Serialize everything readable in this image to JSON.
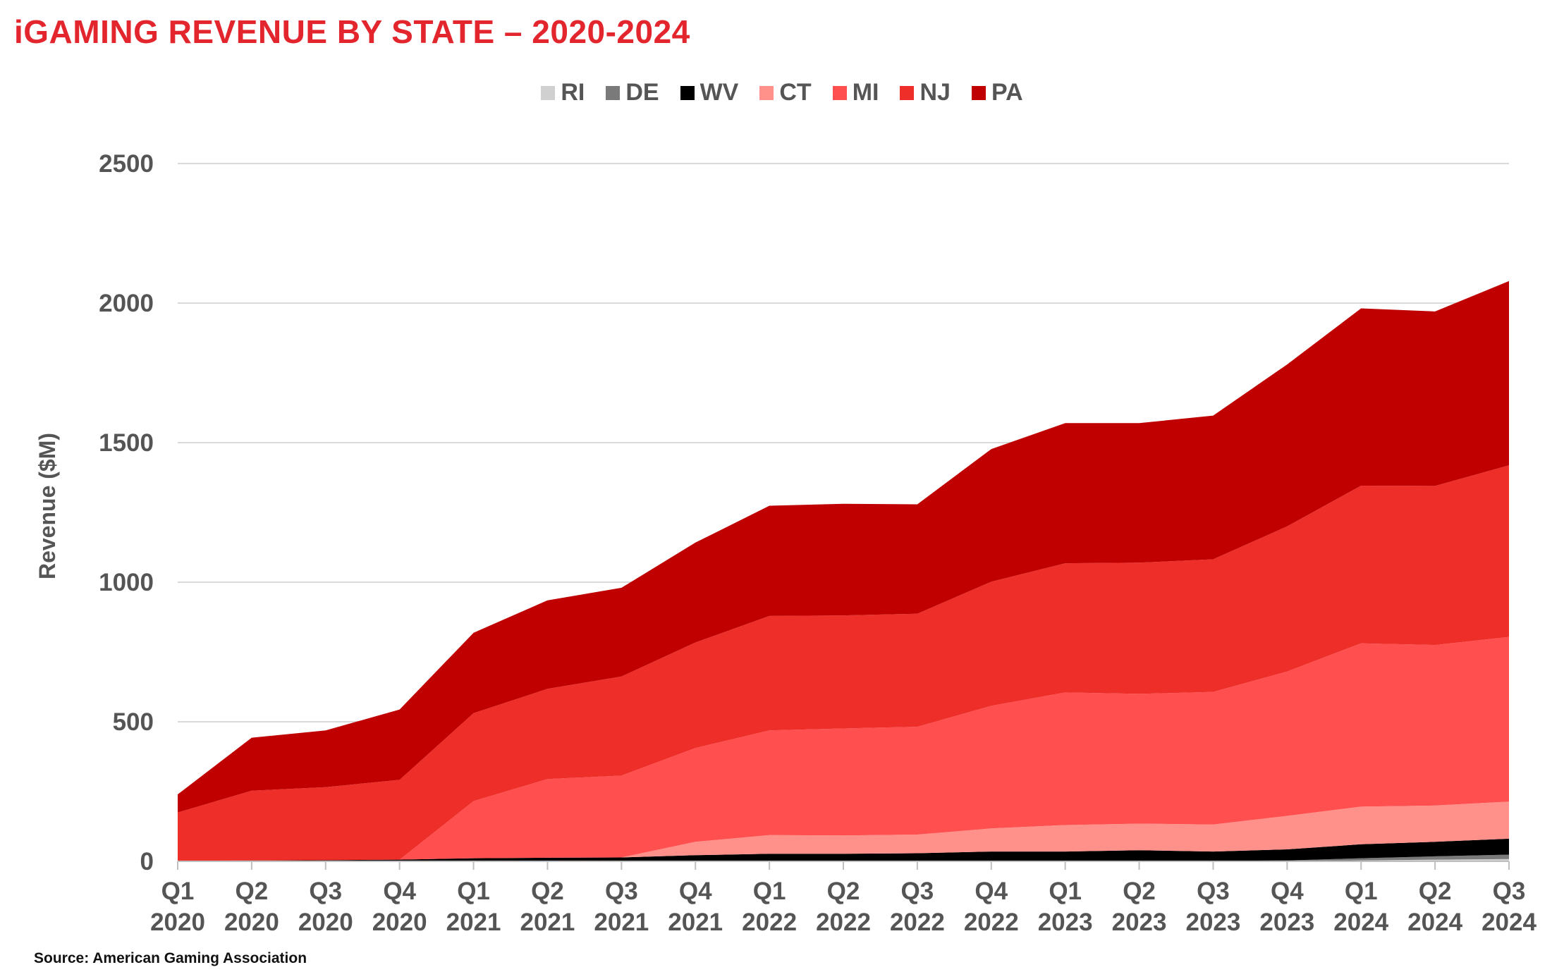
{
  "chart_data": {
    "type": "area",
    "stacked": true,
    "title": "iGAMING REVENUE BY STATE – 2020-2024",
    "ylabel": "Revenue ($M)",
    "xlabel": "",
    "ylim": [
      0,
      2500
    ],
    "yticks": [
      0,
      500,
      1000,
      1500,
      2000,
      2500
    ],
    "grid": "horizontal",
    "legend_position": "top-center",
    "categories": [
      {
        "q": "Q1",
        "y": "2020"
      },
      {
        "q": "Q2",
        "y": "2020"
      },
      {
        "q": "Q3",
        "y": "2020"
      },
      {
        "q": "Q4",
        "y": "2020"
      },
      {
        "q": "Q1",
        "y": "2021"
      },
      {
        "q": "Q2",
        "y": "2021"
      },
      {
        "q": "Q3",
        "y": "2021"
      },
      {
        "q": "Q4",
        "y": "2021"
      },
      {
        "q": "Q1",
        "y": "2022"
      },
      {
        "q": "Q2",
        "y": "2022"
      },
      {
        "q": "Q3",
        "y": "2022"
      },
      {
        "q": "Q4",
        "y": "2022"
      },
      {
        "q": "Q1",
        "y": "2023"
      },
      {
        "q": "Q2",
        "y": "2023"
      },
      {
        "q": "Q3",
        "y": "2023"
      },
      {
        "q": "Q4",
        "y": "2023"
      },
      {
        "q": "Q1",
        "y": "2024"
      },
      {
        "q": "Q2",
        "y": "2024"
      },
      {
        "q": "Q3",
        "y": "2024"
      }
    ],
    "series": [
      {
        "name": "RI",
        "color": "#d0d0d0",
        "values": [
          0,
          0,
          0,
          0,
          0,
          0,
          0,
          0,
          0,
          0,
          0,
          0,
          0,
          0,
          0,
          0,
          3,
          6,
          8
        ]
      },
      {
        "name": "DE",
        "color": "#7a7a7a",
        "values": [
          1,
          1,
          1,
          1,
          2,
          2,
          2,
          2,
          2,
          2,
          2,
          2,
          2,
          2,
          2,
          3,
          8,
          12,
          16
        ]
      },
      {
        "name": "WV",
        "color": "#000000",
        "values": [
          1,
          2,
          3,
          5,
          9,
          11,
          12,
          20,
          25,
          25,
          27,
          33,
          33,
          38,
          33,
          40,
          50,
          52,
          57
        ]
      },
      {
        "name": "CT",
        "color": "#ff918a",
        "values": [
          0,
          0,
          0,
          0,
          0,
          0,
          0,
          48,
          67,
          66,
          67,
          83,
          95,
          95,
          97,
          120,
          135,
          130,
          133
        ]
      },
      {
        "name": "MI",
        "color": "#ff4f4f",
        "values": [
          0,
          0,
          0,
          0,
          205,
          282,
          293,
          336,
          375,
          383,
          386,
          439,
          475,
          465,
          475,
          517,
          585,
          575,
          590
        ]
      },
      {
        "name": "NJ",
        "color": "#ee2e28",
        "values": [
          173,
          250,
          262,
          286,
          315,
          323,
          355,
          378,
          410,
          405,
          405,
          445,
          463,
          470,
          475,
          520,
          565,
          570,
          615
        ]
      },
      {
        "name": "PA",
        "color": "#c00000",
        "values": [
          65,
          190,
          203,
          252,
          288,
          317,
          318,
          358,
          395,
          400,
          392,
          475,
          502,
          500,
          515,
          580,
          635,
          625,
          660
        ]
      }
    ]
  },
  "source": "Source: American Gaming Association"
}
